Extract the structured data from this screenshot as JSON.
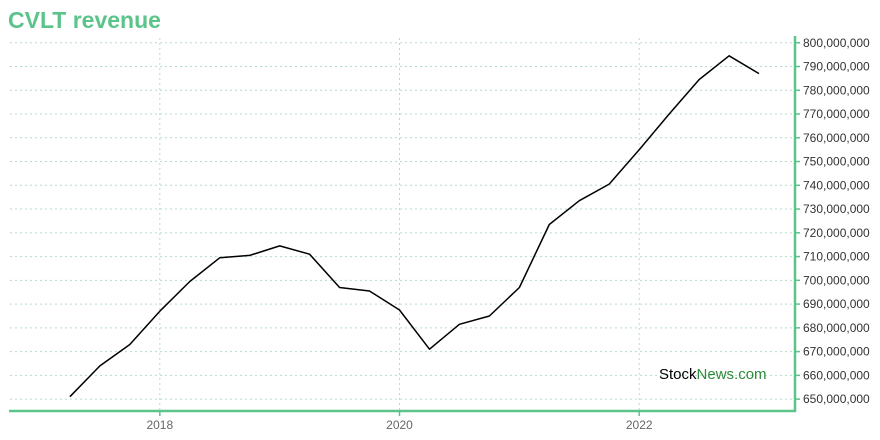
{
  "chart_data": {
    "type": "line",
    "title": "CVLT revenue",
    "xlabel": "",
    "ylabel": "",
    "x_tick_labels": [
      "2018",
      "2020",
      "2022"
    ],
    "x_ticks": [
      2018.0,
      2020.0,
      2022.0
    ],
    "xlim": [
      2016.75,
      2023.3
    ],
    "ylim": [
      645000000,
      802000000
    ],
    "y_ticks": [
      650000000,
      660000000,
      670000000,
      680000000,
      690000000,
      700000000,
      710000000,
      720000000,
      730000000,
      740000000,
      750000000,
      760000000,
      770000000,
      780000000,
      790000000,
      800000000
    ],
    "y_tick_labels": [
      "650,000,000",
      "660,000,000",
      "670,000,000",
      "680,000,000",
      "690,000,000",
      "700,000,000",
      "710,000,000",
      "720,000,000",
      "730,000,000",
      "740,000,000",
      "750,000,000",
      "760,000,000",
      "770,000,000",
      "780,000,000",
      "790,000,000",
      "800,000,000"
    ],
    "grid": true,
    "axis_side": "right",
    "series": [
      {
        "x": [
          2017.25,
          2017.5,
          2017.75,
          2018.0,
          2018.25,
          2018.5,
          2018.75,
          2019.0,
          2019.25,
          2019.5,
          2019.75,
          2020.0,
          2020.25,
          2020.5,
          2020.75,
          2021.0,
          2021.25,
          2021.5,
          2021.75,
          2022.0,
          2022.25,
          2022.5,
          2022.75,
          2023.0
        ],
        "y": [
          651000000,
          664000000,
          673000000,
          687000000,
          699500000,
          709500000,
          710500000,
          714500000,
          711000000,
          697000000,
          695500000,
          687500000,
          671000000,
          681500000,
          685000000,
          697000000,
          723500000,
          733500000,
          740500000,
          755000000,
          770000000,
          784500000,
          794500000,
          787000000
        ]
      }
    ],
    "colors": {
      "title": "#5cc48a",
      "axis": "#5cc48a",
      "grid": "#b7dcc8",
      "line": "#000000",
      "watermark_accent": "#2e8b3a"
    }
  },
  "watermark": {
    "part1": "Stock",
    "part2": "News.com"
  }
}
